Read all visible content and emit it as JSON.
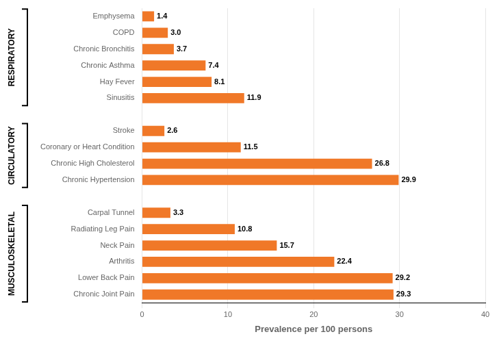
{
  "chart_data": {
    "type": "bar",
    "orientation": "horizontal",
    "categories": [
      "Emphysema",
      "COPD",
      "Chronic Bronchitis",
      "Chronic Asthma",
      "Hay Fever",
      "Sinusitis",
      null,
      "Stroke",
      "Coronary or Heart Condition",
      "Chronic High Cholesterol",
      "Chronic Hypertension",
      null,
      "Carpal Tunnel",
      "Radiating Leg Pain",
      "Neck Pain",
      "Arthritis",
      "Lower Back Pain",
      "Chronic Joint Pain"
    ],
    "values": [
      1.4,
      3.0,
      3.7,
      7.4,
      8.1,
      11.9,
      null,
      2.6,
      11.5,
      26.8,
      29.9,
      null,
      3.3,
      10.8,
      15.7,
      22.4,
      29.2,
      29.3
    ],
    "value_labels": [
      "1.4",
      "3.0",
      "3.7",
      "7.4",
      "8.1",
      "11.9",
      null,
      "2.6",
      "11.5",
      "26.8",
      "29.9",
      null,
      "3.3",
      "10.8",
      "15.7",
      "22.4",
      "29.2",
      "29.3"
    ],
    "data_labels": true,
    "color": "#F07828",
    "xlabel": "Prevalence per 100 persons",
    "xlim": [
      0,
      40
    ],
    "xticks": [
      0,
      10,
      20,
      30,
      40
    ],
    "grid": true,
    "annotations": [
      {
        "text": "RESPIRATORY",
        "start": "Emphysema",
        "end": "Sinusitis"
      },
      {
        "text": "CIRCULATORY",
        "start": "Stroke",
        "end": "Chronic Hypertension"
      },
      {
        "text": "MUSCULOSKELETAL",
        "start": "Carpal Tunnel",
        "end": "Chronic Joint Pain"
      }
    ]
  }
}
